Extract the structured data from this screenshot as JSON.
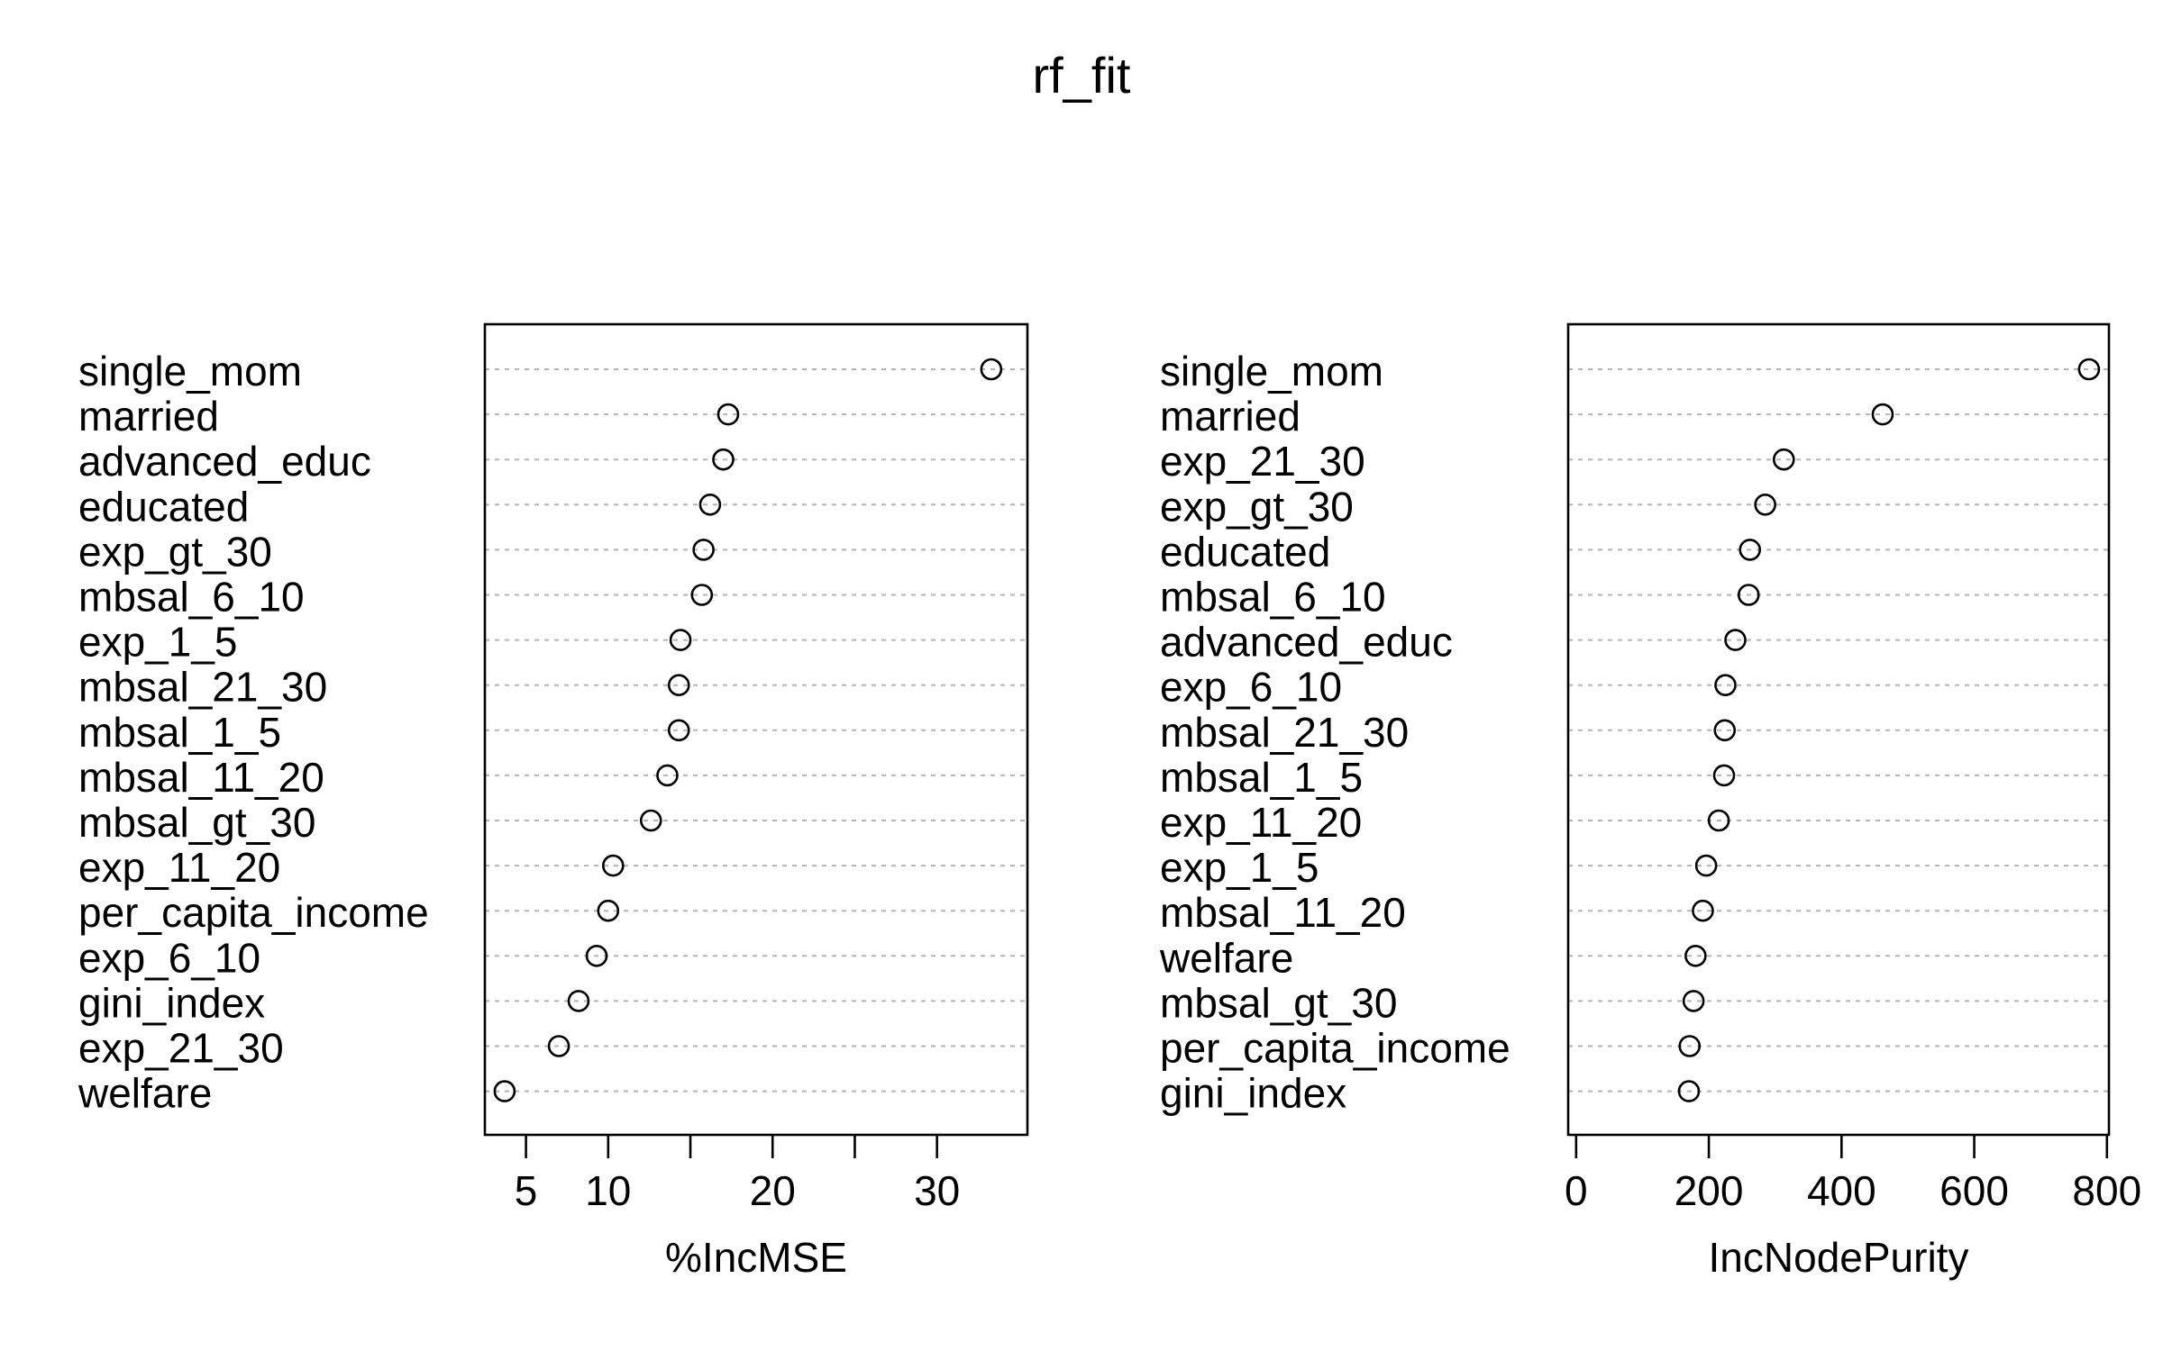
{
  "title": "rf_fit",
  "chart_data": [
    {
      "type": "scatter",
      "subtype": "dotchart",
      "xlabel": "%IncMSE",
      "ylabel": "",
      "xlim": [
        2.5,
        35.5
      ],
      "xticks": [
        5,
        10,
        15,
        20,
        25,
        30
      ],
      "xtick_labels": [
        "5",
        "10",
        "",
        "20",
        "",
        "30"
      ],
      "grid": "dotted horizontal lines per row",
      "categories": [
        "single_mom",
        "married",
        "advanced_educ",
        "educated",
        "exp_gt_30",
        "mbsal_6_10",
        "exp_1_5",
        "mbsal_21_30",
        "mbsal_1_5",
        "mbsal_11_20",
        "mbsal_gt_30",
        "exp_11_20",
        "per_capita_income",
        "exp_6_10",
        "gini_index",
        "exp_21_30",
        "welfare"
      ],
      "values": [
        33.3,
        17.3,
        17.0,
        16.2,
        15.8,
        15.7,
        14.4,
        14.3,
        14.3,
        13.6,
        12.6,
        10.3,
        10.0,
        9.3,
        8.2,
        7.0,
        3.7
      ]
    },
    {
      "type": "scatter",
      "subtype": "dotchart",
      "xlabel": "IncNodePurity",
      "ylabel": "",
      "xlim": [
        -12,
        803
      ],
      "xticks": [
        0,
        200,
        400,
        600,
        800
      ],
      "xtick_labels": [
        "0",
        "200",
        "400",
        "600",
        "800"
      ],
      "grid": "dotted horizontal lines per row",
      "categories": [
        "single_mom",
        "married",
        "exp_21_30",
        "exp_gt_30",
        "educated",
        "mbsal_6_10",
        "advanced_educ",
        "exp_6_10",
        "mbsal_21_30",
        "mbsal_1_5",
        "exp_11_20",
        "exp_1_5",
        "mbsal_11_20",
        "welfare",
        "mbsal_gt_30",
        "per_capita_income",
        "gini_index"
      ],
      "values": [
        773,
        462,
        313,
        285,
        262,
        260,
        240,
        225,
        224,
        223,
        215,
        196,
        191,
        180,
        177,
        171,
        170
      ]
    }
  ]
}
